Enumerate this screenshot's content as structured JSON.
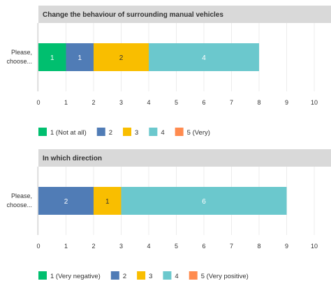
{
  "chart_data": [
    {
      "type": "bar",
      "orientation": "horizontal",
      "stacked": true,
      "title": "Change the behaviour of surrounding manual vehicles",
      "categories": [
        "Please, choose..."
      ],
      "category_lines": [
        "Please,",
        "choose..."
      ],
      "xlim": [
        0,
        10
      ],
      "ticks": [
        "0",
        "1",
        "2",
        "3",
        "4",
        "5",
        "6",
        "7",
        "8",
        "9",
        "10"
      ],
      "grid": true,
      "legend_position": "bottom",
      "series": [
        {
          "name": "1 (Not at all)",
          "values": [
            1
          ],
          "color": "#00bf6f",
          "label_color": "#ffffff"
        },
        {
          "name": "2",
          "values": [
            1
          ],
          "color": "#507cb6",
          "label_color": "#ffffff"
        },
        {
          "name": "3",
          "values": [
            2
          ],
          "color": "#f9be00",
          "label_color": "#333333"
        },
        {
          "name": "4",
          "values": [
            4
          ],
          "color": "#6bc8cd",
          "label_color": "#ffffff"
        },
        {
          "name": "5 (Very)",
          "values": [
            0
          ],
          "color": "#ff8b4f",
          "label_color": "#ffffff"
        }
      ]
    },
    {
      "type": "bar",
      "orientation": "horizontal",
      "stacked": true,
      "title": "In which direction",
      "categories": [
        "Please, choose..."
      ],
      "category_lines": [
        "Please,",
        "choose..."
      ],
      "xlim": [
        0,
        10
      ],
      "ticks": [
        "0",
        "1",
        "2",
        "3",
        "4",
        "5",
        "6",
        "7",
        "8",
        "9",
        "10"
      ],
      "grid": true,
      "legend_position": "bottom",
      "series": [
        {
          "name": "1 (Very negative)",
          "values": [
            0
          ],
          "color": "#00bf6f",
          "label_color": "#ffffff"
        },
        {
          "name": "2",
          "values": [
            2
          ],
          "color": "#507cb6",
          "label_color": "#ffffff"
        },
        {
          "name": "3",
          "values": [
            1
          ],
          "color": "#f9be00",
          "label_color": "#333333"
        },
        {
          "name": "4",
          "values": [
            6
          ],
          "color": "#6bc8cd",
          "label_color": "#ffffff"
        },
        {
          "name": "5 (Very positive)",
          "values": [
            0
          ],
          "color": "#ff8b4f",
          "label_color": "#ffffff"
        }
      ]
    }
  ]
}
